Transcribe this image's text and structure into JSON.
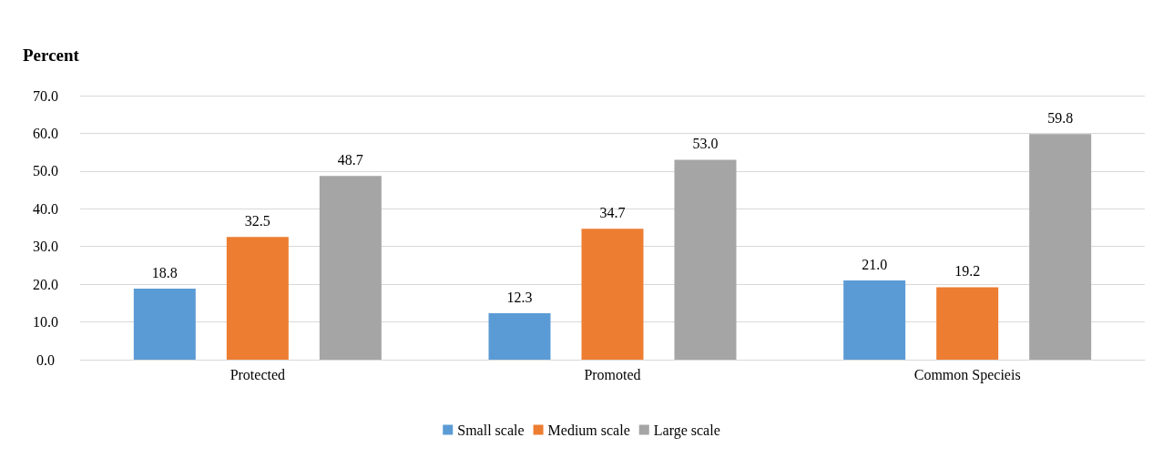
{
  "chart_data": {
    "type": "bar",
    "ylabel": "Percent",
    "categories": [
      "Protected",
      "Promoted",
      "Common Specieis"
    ],
    "series": [
      {
        "name": "Small scale",
        "color": "#5b9bd5",
        "values": [
          18.8,
          12.3,
          21.0
        ],
        "value_labels": [
          "18.8",
          "12.3",
          "21.0"
        ]
      },
      {
        "name": "Medium scale",
        "color": "#ed7d31",
        "values": [
          32.5,
          34.7,
          19.2
        ],
        "value_labels": [
          "32.5",
          "34.7",
          "19.2"
        ]
      },
      {
        "name": "Large scale",
        "color": "#a5a5a5",
        "values": [
          48.7,
          53.0,
          59.8
        ],
        "value_labels": [
          "48.7",
          "53.0",
          "59.8"
        ]
      }
    ],
    "ylim": [
      0,
      70
    ],
    "yticks": [
      {
        "value": 0,
        "label": "0.0"
      },
      {
        "value": 10,
        "label": "10.0"
      },
      {
        "value": 20,
        "label": "20.0"
      },
      {
        "value": 30,
        "label": "30.0"
      },
      {
        "value": 40,
        "label": "40.0"
      },
      {
        "value": 50,
        "label": "50.0"
      },
      {
        "value": 60,
        "label": "60.0"
      },
      {
        "value": 70,
        "label": "70.0"
      }
    ],
    "grid": "y",
    "legend": "bottom"
  }
}
